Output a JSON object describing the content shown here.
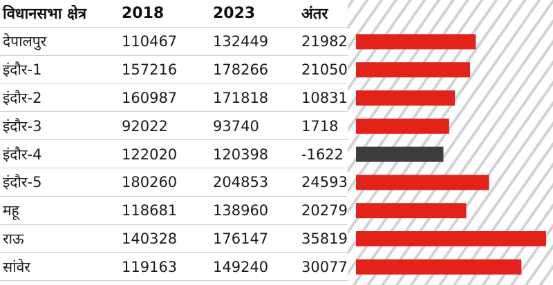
{
  "header": {
    "constituency": "विधानसभा क्षेत्र",
    "y2018": "2018",
    "y2023": "2023",
    "diff": "अंतर"
  },
  "colors": {
    "positive": "#e32219",
    "negative": "#3f3d3c",
    "stripe": "#cfd3d6"
  },
  "chart_data": {
    "type": "bar",
    "orientation": "horizontal",
    "categories": [
      "देपालपुर",
      "इंदौर-1",
      "इंदौर-2",
      "इंदौर-3",
      "इंदौर-4",
      "इंदौर-5",
      "महू",
      "राऊ",
      "सांवेर"
    ],
    "series": [
      {
        "name": "2018",
        "values": [
          110467,
          157216,
          160987,
          92022,
          122020,
          180260,
          118681,
          140328,
          119163
        ]
      },
      {
        "name": "2023",
        "values": [
          132449,
          178266,
          171818,
          93740,
          120398,
          204853,
          138960,
          176147,
          149240
        ]
      },
      {
        "name": "अंतर",
        "values": [
          21982,
          21050,
          10831,
          1718,
          -1622,
          24593,
          20279,
          35819,
          30077
        ]
      }
    ],
    "bar_lengths": [
      0.63,
      0.6,
      0.52,
      0.49,
      0.46,
      0.7,
      0.58,
      1.0,
      0.87
    ]
  }
}
